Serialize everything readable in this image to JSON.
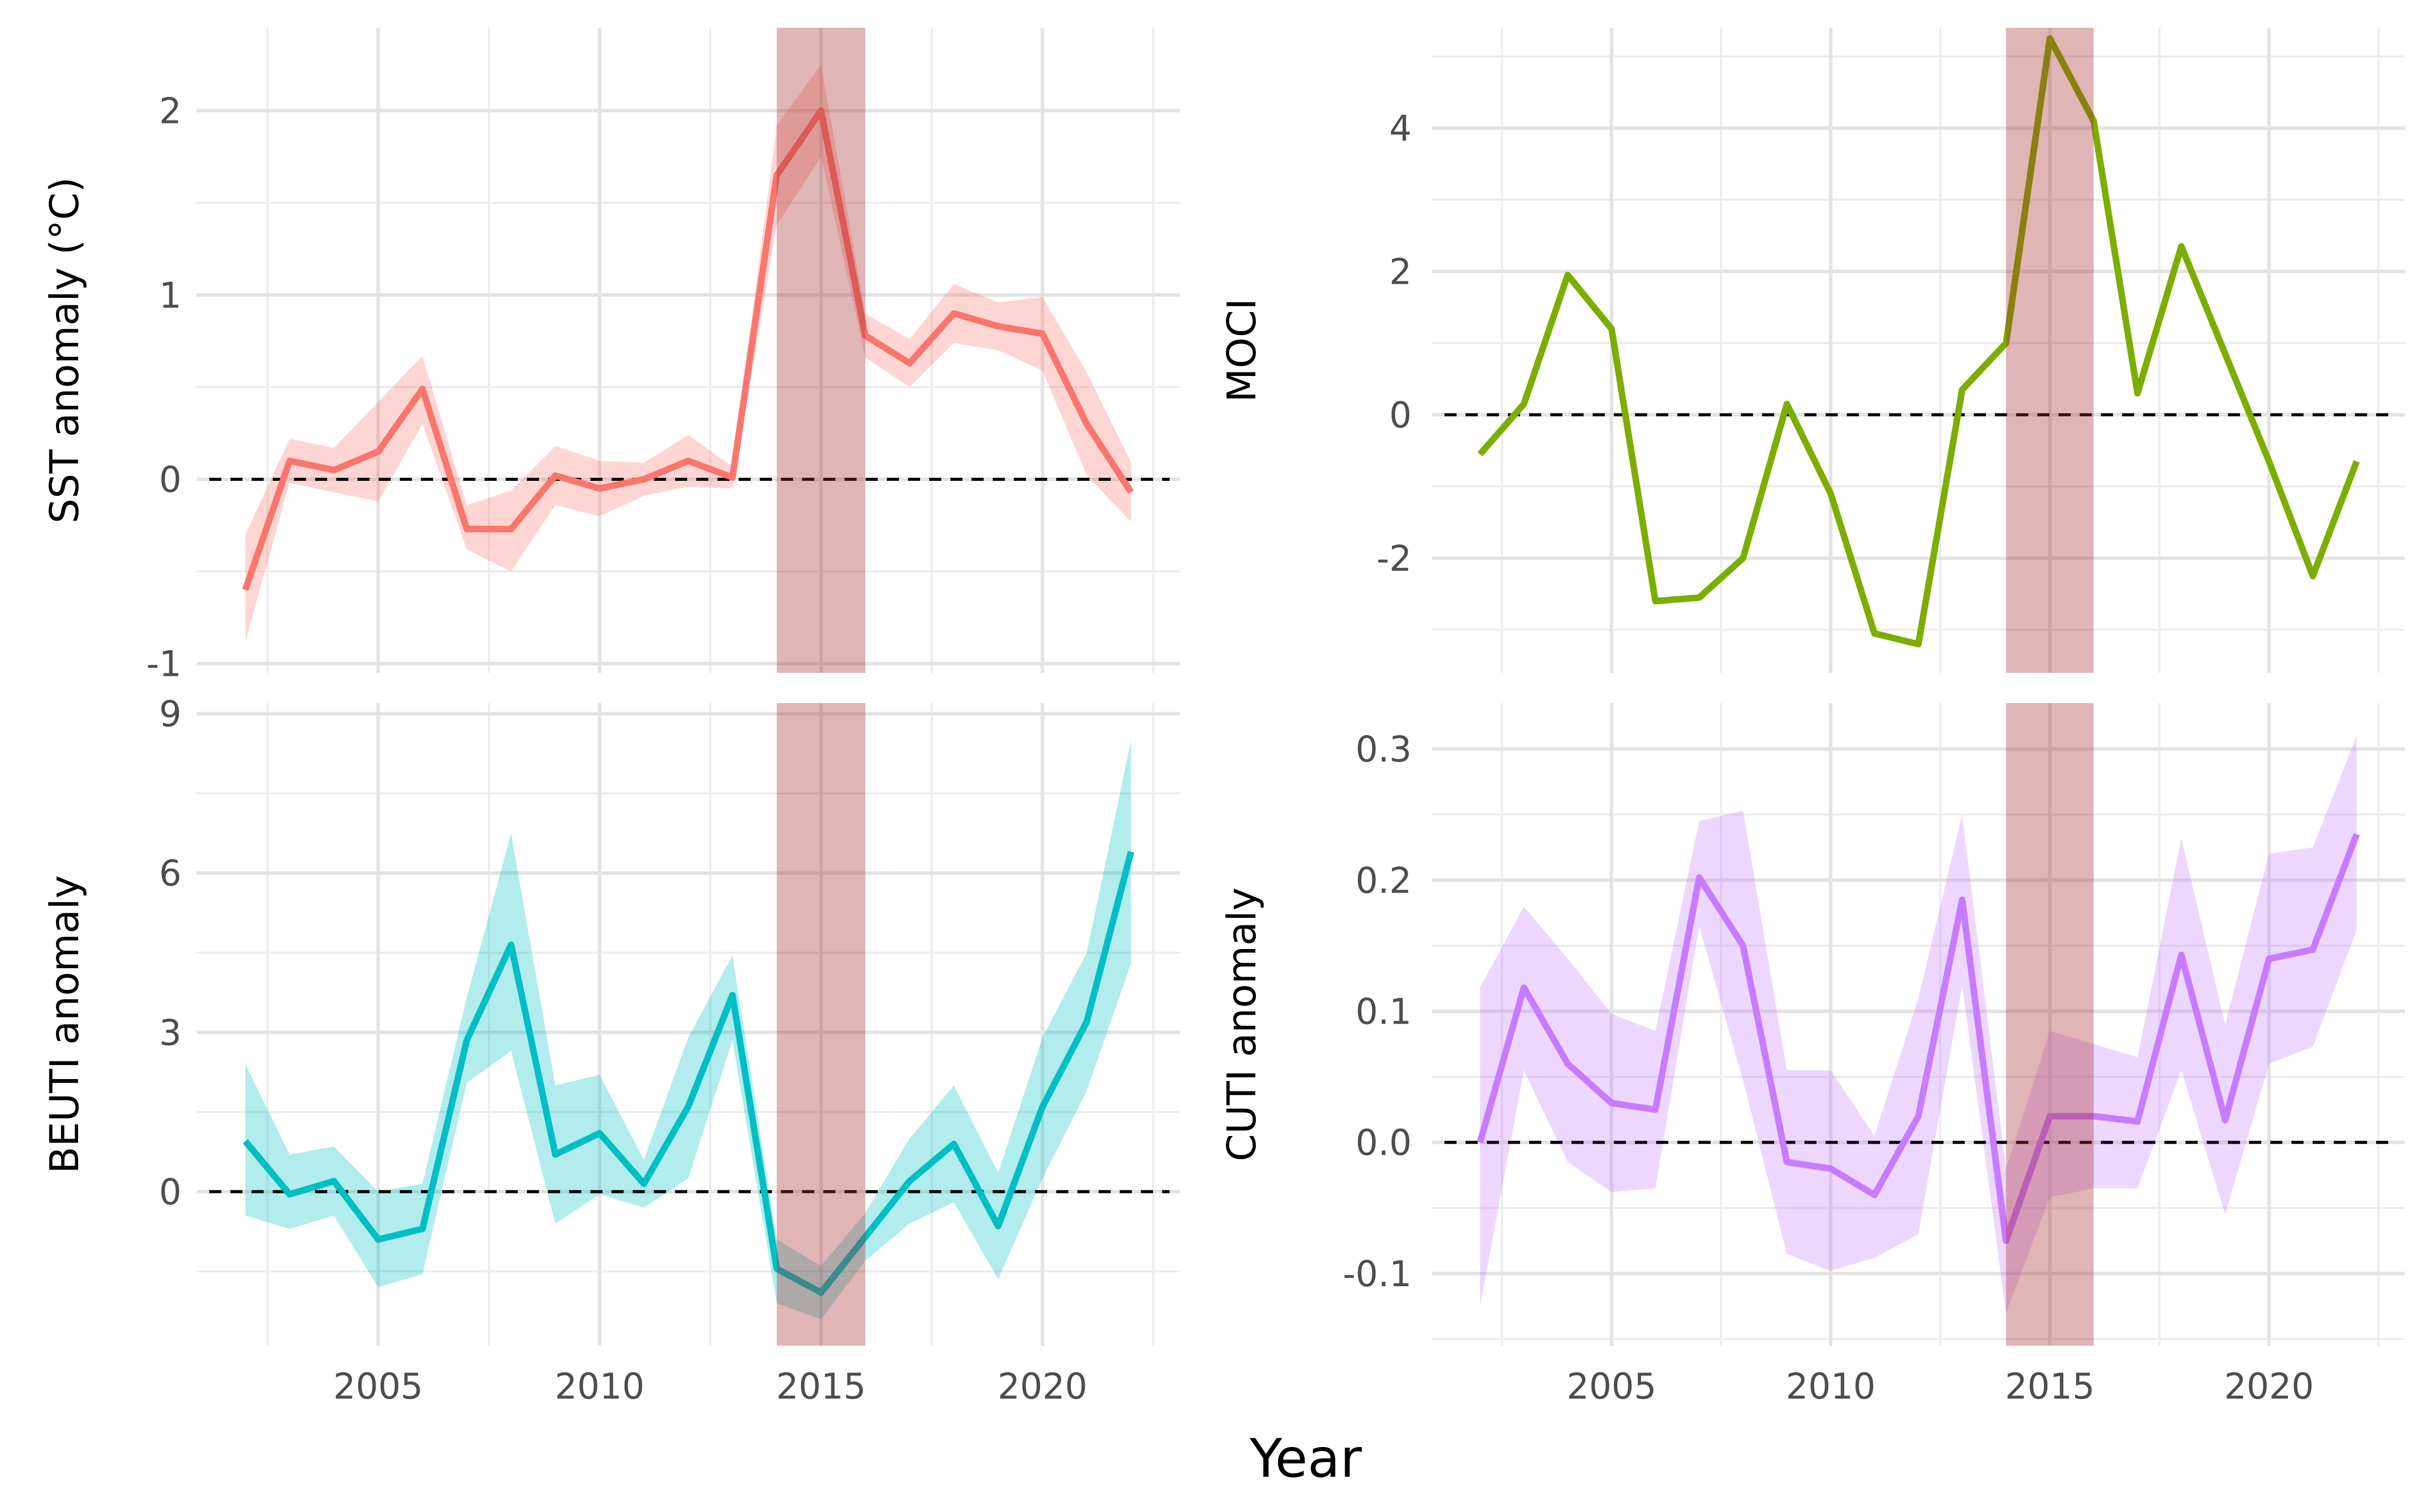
{
  "figure": {
    "xlabel": "Year",
    "highlight_period": [
      2014,
      2016
    ],
    "highlight_color": "#a52a2a"
  },
  "chart_data": [
    {
      "type": "line",
      "panel": "top-left",
      "ylabel": "SST anomaly (°C)",
      "color": "#f8766d",
      "ribbon": true,
      "reference_line": 0,
      "xlim": [
        2000.9,
        2023.1
      ],
      "ylim": [
        -1.05,
        2.45
      ],
      "x_ticks": [
        2005,
        2010,
        2015,
        2020
      ],
      "x_tick_labels": [],
      "y_ticks": [
        -1,
        0,
        1,
        2
      ],
      "y_tick_labels": [
        "-1",
        "0",
        "1",
        "2"
      ],
      "grid": true,
      "series": [
        {
          "x": [
            2002,
            2003,
            2004,
            2005,
            2006,
            2007,
            2008,
            2009,
            2010,
            2011,
            2012,
            2013,
            2014,
            2015,
            2016,
            2017,
            2018,
            2019,
            2020,
            2021,
            2022
          ],
          "y": [
            -0.6,
            0.1,
            0.05,
            0.15,
            0.49,
            -0.27,
            -0.27,
            0.02,
            -0.05,
            0.0,
            0.1,
            0.01,
            1.65,
            2.0,
            0.78,
            0.63,
            0.9,
            0.83,
            0.79,
            0.3,
            -0.07
          ],
          "lower": [
            -0.88,
            -0.02,
            -0.07,
            -0.12,
            0.3,
            -0.38,
            -0.5,
            -0.14,
            -0.2,
            -0.09,
            -0.04,
            -0.05,
            1.38,
            1.75,
            0.66,
            0.5,
            0.74,
            0.7,
            0.59,
            0.02,
            -0.23
          ],
          "upper": [
            -0.3,
            0.22,
            0.17,
            0.42,
            0.67,
            -0.14,
            -0.06,
            0.18,
            0.1,
            0.09,
            0.24,
            0.07,
            1.92,
            2.25,
            0.9,
            0.76,
            1.06,
            0.96,
            0.99,
            0.58,
            0.09
          ]
        }
      ]
    },
    {
      "type": "line",
      "panel": "top-right",
      "ylabel": "MOCI",
      "color": "#7cae00",
      "ribbon": false,
      "reference_line": 0,
      "xlim": [
        2000.9,
        2023.1
      ],
      "ylim": [
        -3.6,
        5.4
      ],
      "x_ticks": [
        2005,
        2010,
        2015,
        2020
      ],
      "x_tick_labels": [],
      "y_ticks": [
        -2,
        0,
        2,
        4
      ],
      "y_tick_labels": [
        "-2",
        "0",
        "2",
        "4"
      ],
      "grid": true,
      "series": [
        {
          "x": [
            2002,
            2003,
            2004,
            2005,
            2006,
            2007,
            2008,
            2009,
            2010,
            2011,
            2012,
            2013,
            2014,
            2015,
            2016,
            2017,
            2018,
            2019,
            2020,
            2021,
            2022
          ],
          "y": [
            -0.55,
            0.15,
            1.95,
            1.2,
            -2.6,
            -2.55,
            -2.0,
            0.15,
            -1.1,
            -3.05,
            -3.2,
            0.35,
            1.0,
            5.25,
            4.1,
            0.3,
            2.35,
            0.85,
            -0.65,
            -2.25,
            -0.65
          ]
        }
      ]
    },
    {
      "type": "line",
      "panel": "bottom-left",
      "ylabel": "BEUTI anomaly",
      "color": "#00bfc4",
      "ribbon": true,
      "reference_line": 0,
      "xlim": [
        2000.9,
        2023.1
      ],
      "ylim": [
        -2.9,
        9.2
      ],
      "x_ticks": [
        2005,
        2010,
        2015,
        2020
      ],
      "x_tick_labels": [
        "2005",
        "2010",
        "2015",
        "2020"
      ],
      "y_ticks": [
        0,
        3,
        6,
        9
      ],
      "y_tick_labels": [
        "0",
        "3",
        "6",
        "9"
      ],
      "grid": true,
      "series": [
        {
          "x": [
            2002,
            2003,
            2004,
            2005,
            2006,
            2007,
            2008,
            2009,
            2010,
            2011,
            2012,
            2013,
            2014,
            2015,
            2016,
            2017,
            2018,
            2019,
            2020,
            2021,
            2022
          ],
          "y": [
            0.95,
            -0.05,
            0.2,
            -0.9,
            -0.7,
            2.85,
            4.65,
            0.7,
            1.1,
            0.15,
            1.6,
            3.7,
            -1.45,
            -1.9,
            -0.85,
            0.2,
            0.9,
            -0.65,
            1.6,
            3.2,
            6.4
          ],
          "lower": [
            -0.45,
            -0.7,
            -0.45,
            -1.8,
            -1.55,
            2.05,
            2.65,
            -0.6,
            -0.05,
            -0.3,
            0.25,
            2.85,
            -2.1,
            -2.4,
            -1.3,
            -0.6,
            -0.2,
            -1.65,
            0.25,
            1.9,
            4.3
          ],
          "upper": [
            2.4,
            0.7,
            0.85,
            0.0,
            0.15,
            3.65,
            6.75,
            2.0,
            2.2,
            0.6,
            2.9,
            4.45,
            -0.9,
            -1.4,
            -0.4,
            1.0,
            2.0,
            0.35,
            2.9,
            4.5,
            8.5
          ]
        }
      ]
    },
    {
      "type": "line",
      "panel": "bottom-right",
      "ylabel": "CUTI anomaly",
      "color": "#c77cff",
      "ribbon": true,
      "reference_line": 0,
      "xlim": [
        2000.9,
        2023.1
      ],
      "ylim": [
        -0.155,
        0.335
      ],
      "x_ticks": [
        2005,
        2010,
        2015,
        2020
      ],
      "x_tick_labels": [
        "2005",
        "2010",
        "2015",
        "2020"
      ],
      "y_ticks": [
        -0.1,
        0.0,
        0.1,
        0.2,
        0.3
      ],
      "y_tick_labels": [
        "-0.1",
        "0.0",
        "0.1",
        "0.2",
        "0.3"
      ],
      "grid": true,
      "series": [
        {
          "x": [
            2002,
            2003,
            2004,
            2005,
            2006,
            2007,
            2008,
            2009,
            2010,
            2011,
            2012,
            2013,
            2014,
            2015,
            2016,
            2017,
            2018,
            2019,
            2020,
            2021,
            2022
          ],
          "y": [
            0.0,
            0.118,
            0.06,
            0.03,
            0.025,
            0.202,
            0.15,
            -0.015,
            -0.02,
            -0.04,
            0.02,
            0.185,
            -0.075,
            0.02,
            0.02,
            0.016,
            0.143,
            0.017,
            0.14,
            0.147,
            0.235
          ],
          "lower": [
            -0.125,
            0.055,
            -0.015,
            -0.038,
            -0.035,
            0.165,
            0.047,
            -0.085,
            -0.098,
            -0.088,
            -0.07,
            0.12,
            -0.13,
            -0.042,
            -0.035,
            -0.035,
            0.055,
            -0.055,
            0.06,
            0.073,
            0.162
          ],
          "upper": [
            0.118,
            0.18,
            0.14,
            0.098,
            0.085,
            0.245,
            0.253,
            0.055,
            0.055,
            0.005,
            0.11,
            0.25,
            -0.02,
            0.085,
            0.075,
            0.065,
            0.232,
            0.09,
            0.22,
            0.225,
            0.31
          ]
        }
      ]
    }
  ]
}
